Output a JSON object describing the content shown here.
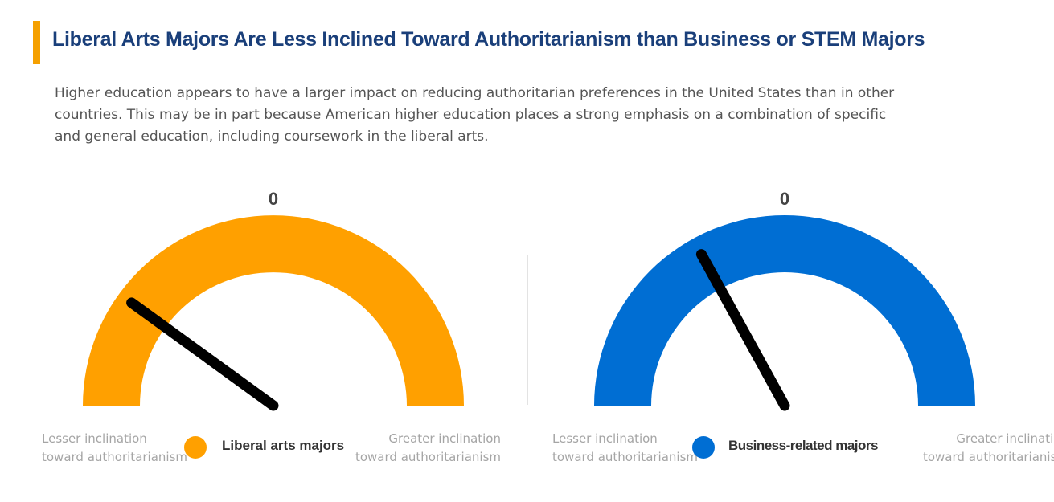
{
  "header": {
    "title": "Liberal Arts Majors Are Less Inclined Toward Authoritarianism than Business or STEM Majors",
    "description": "Higher education appears to have a larger impact on reducing authoritarian preferences in the United States than in other countries. This may be in part because American higher education places a strong emphasis on a combination of specific and general education, including coursework in the liberal arts."
  },
  "chart_data": [
    {
      "type": "gauge",
      "value_label": "0",
      "needle_position": 0.2,
      "min_label": "Lesser inclination toward authoritarianism",
      "min_label_lines": [
        "Lesser inclination",
        "toward authoritarianism"
      ],
      "max_label": "Greater inclination toward authoritarianism",
      "max_label_lines": [
        "Greater inclination",
        "toward authoritarianism"
      ],
      "legend": "Liberal arts majors",
      "color": "#ffa000"
    },
    {
      "type": "gauge",
      "value_label": "0",
      "needle_position": 0.34,
      "min_label": "Lesser inclination toward authoritarianism",
      "min_label_lines": [
        "Lesser inclination",
        "toward authoritarianism"
      ],
      "max_label": "Greater inclination toward authoritarianism",
      "max_label_lines": [
        "Greater inclination",
        "toward authoritarianism"
      ],
      "legend": "Business-related majors",
      "color": "#006ed3"
    }
  ]
}
